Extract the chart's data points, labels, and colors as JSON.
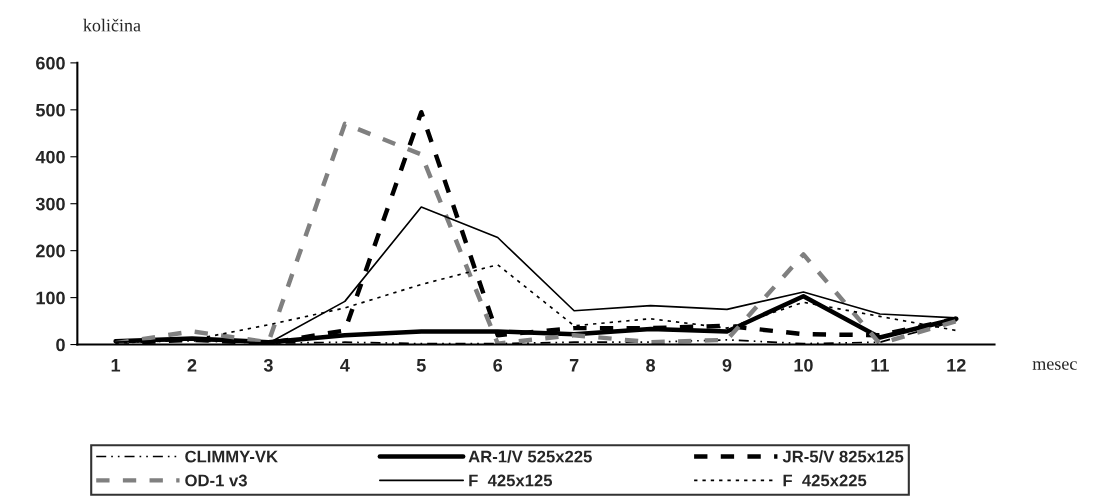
{
  "chart_data": {
    "type": "line",
    "xlabel": "mesec",
    "ylabel": "količina",
    "categories": [
      "1",
      "2",
      "3",
      "4",
      "5",
      "6",
      "7",
      "8",
      "9",
      "10",
      "11",
      "12"
    ],
    "ylim": [
      0,
      600
    ],
    "yticks": [
      0,
      100,
      200,
      300,
      400,
      500,
      600
    ],
    "grid": false,
    "legend": "bottom",
    "series": [
      {
        "name": "CLIMMY-VK",
        "color": "#000000",
        "line_style": "dashdot",
        "values": [
          5,
          8,
          3,
          5,
          2,
          2,
          5,
          5,
          10,
          2,
          5,
          50
        ]
      },
      {
        "name": "AR-1/V 525x225",
        "color": "#000000",
        "line_style": "solid",
        "values": [
          7,
          13,
          5,
          20,
          28,
          28,
          22,
          33,
          28,
          103,
          15,
          55
        ]
      },
      {
        "name": "JR-5/V 825x125",
        "color": "#000000",
        "line_style": "dashed",
        "values": [
          3,
          10,
          3,
          30,
          495,
          20,
          35,
          35,
          40,
          22,
          20,
          55
        ]
      },
      {
        "name": "OD-1 v3",
        "color": "#808080",
        "line_style": "dashed",
        "values": [
          3,
          28,
          5,
          470,
          405,
          2,
          20,
          5,
          10,
          192,
          2,
          50
        ]
      },
      {
        "name": "F  425x125",
        "color": "#000000",
        "line_style": "solid",
        "values": [
          5,
          10,
          3,
          92,
          293,
          228,
          72,
          83,
          75,
          112,
          65,
          57
        ]
      },
      {
        "name": "F  425x225",
        "color": "#000000",
        "line_style": "dotted",
        "values": [
          3,
          10,
          42,
          78,
          128,
          170,
          40,
          55,
          35,
          90,
          60,
          30
        ]
      }
    ]
  }
}
